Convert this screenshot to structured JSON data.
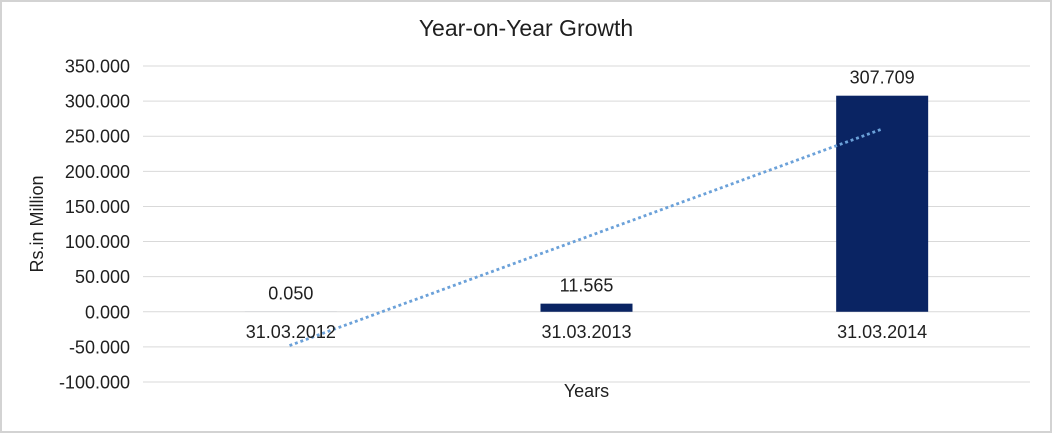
{
  "chart_data": {
    "type": "bar",
    "title": "Year-on-Year Growth",
    "xlabel": "Years",
    "ylabel": "Rs.in Million",
    "categories": [
      "31.03.2012",
      "31.03.2013",
      "31.03.2014"
    ],
    "values": [
      0.05,
      11.565,
      307.709
    ],
    "data_labels": [
      "0.050",
      "11.565",
      "307.709"
    ],
    "ylim": [
      -100,
      350
    ],
    "y_tick_step": 50,
    "y_ticks": [
      {
        "value": 350,
        "label": "350.000"
      },
      {
        "value": 300,
        "label": "300.000"
      },
      {
        "value": 250,
        "label": "250.000"
      },
      {
        "value": 200,
        "label": "200.000"
      },
      {
        "value": 150,
        "label": "150.000"
      },
      {
        "value": 100,
        "label": "100.000"
      },
      {
        "value": 50,
        "label": "50.000"
      },
      {
        "value": 0,
        "label": "0.000"
      },
      {
        "value": -50,
        "label": "-50.000"
      },
      {
        "value": -100,
        "label": "-100.000"
      }
    ],
    "grid": true,
    "legend_position": "none",
    "trendline": {
      "kind": "linear",
      "style": "dotted",
      "color": "#6ba1d9"
    },
    "colors": {
      "bar": "#0a2463",
      "gridline": "#d9d9d9",
      "text": "#1f1f1f",
      "frame_border": "#d3d3d3",
      "background": "#ffffff"
    }
  }
}
